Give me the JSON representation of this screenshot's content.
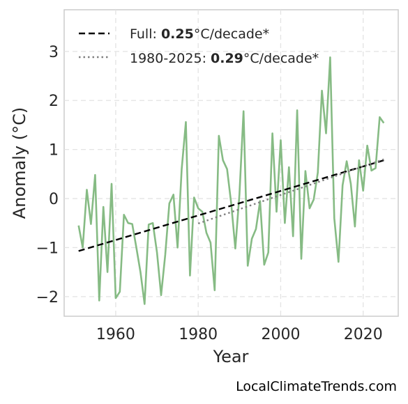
{
  "chart_data": {
    "type": "line",
    "xlabel": "Year",
    "ylabel": "Anomaly (°C)",
    "xlim": [
      1947.5,
      2028.5
    ],
    "ylim": [
      -2.4,
      3.85
    ],
    "xticks": [
      1960,
      1980,
      2000,
      2020
    ],
    "yticks": [
      -2,
      -1,
      0,
      1,
      2,
      3
    ],
    "ytick_labels": [
      "−2",
      "−1",
      "0",
      "1",
      "2",
      "3"
    ],
    "grid": true,
    "legend_position": "top-left",
    "series": [
      {
        "style": "solid",
        "color": "#86bb84",
        "x": [
          1951,
          1952,
          1953,
          1954,
          1955,
          1956,
          1957,
          1958,
          1959,
          1960,
          1961,
          1962,
          1963,
          1964,
          1965,
          1966,
          1967,
          1968,
          1969,
          1970,
          1971,
          1972,
          1973,
          1974,
          1975,
          1976,
          1977,
          1978,
          1979,
          1980,
          1981,
          1982,
          1983,
          1984,
          1985,
          1986,
          1987,
          1988,
          1989,
          1990,
          1991,
          1992,
          1993,
          1994,
          1995,
          1996,
          1997,
          1998,
          1999,
          2000,
          2001,
          2002,
          2003,
          2004,
          2005,
          2006,
          2007,
          2008,
          2009,
          2010,
          2011,
          2012,
          2013,
          2014,
          2015,
          2016,
          2017,
          2018,
          2019,
          2020,
          2021,
          2022,
          2023,
          2024,
          2025
        ],
        "y": [
          -0.55,
          -1.0,
          0.18,
          -0.52,
          0.48,
          -2.08,
          -0.17,
          -1.5,
          0.3,
          -2.03,
          -1.9,
          -0.33,
          -0.5,
          -0.52,
          -1.0,
          -1.5,
          -2.15,
          -0.53,
          -0.5,
          -1.1,
          -1.97,
          -1.15,
          -0.1,
          0.08,
          -1.0,
          0.6,
          1.56,
          -1.57,
          0.02,
          -0.2,
          -0.27,
          -0.7,
          -0.9,
          -1.87,
          1.28,
          0.78,
          0.6,
          -0.1,
          -1.02,
          0.08,
          1.78,
          -1.37,
          -0.82,
          -0.62,
          -0.05,
          -1.35,
          -1.1,
          1.33,
          -0.27,
          1.19,
          -0.5,
          0.64,
          -0.77,
          1.8,
          -1.23,
          0.56,
          -0.2,
          -0.02,
          0.53,
          2.2,
          1.33,
          2.88,
          -0.4,
          -1.29,
          0.27,
          0.76,
          0.3,
          -0.57,
          0.78,
          0.16,
          1.08,
          0.57,
          0.62,
          1.66,
          1.54
        ]
      },
      {
        "name": "Full",
        "style": "dashed",
        "color": "#000000",
        "x": [
          1951,
          2025
        ],
        "y": [
          -1.07,
          0.78
        ]
      },
      {
        "name": "1980-2025",
        "style": "dotted",
        "color": "#808080",
        "x": [
          1980,
          2025
        ],
        "y": [
          -0.51,
          0.8
        ]
      }
    ],
    "legend": [
      {
        "prefix": "Full: ",
        "value": "0.25",
        "suffix": "°C/decade*",
        "style": "dashed",
        "color": "#000000"
      },
      {
        "prefix": "1980-2025: ",
        "value": "0.29",
        "suffix": "°C/decade*",
        "style": "dotted",
        "color": "#808080"
      }
    ]
  },
  "watermark": "LocalClimateTrends.com"
}
